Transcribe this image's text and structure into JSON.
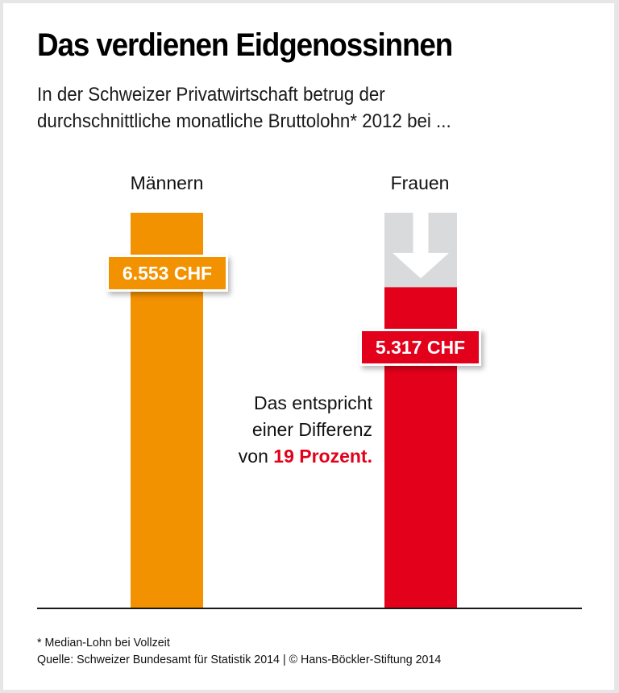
{
  "title": "Das verdienen Eidgenossinnen",
  "subtitle": {
    "line1": "In der Schweizer Privatwirtschaft betrug der",
    "line2": "durchschnittliche monatliche Bruttolohn* 2012 bei ..."
  },
  "note": {
    "line1": "Das entspricht",
    "line2": "einer Differenz",
    "line3_prefix": "von ",
    "line3_highlight": "19 Prozent."
  },
  "footer": {
    "footnote": "* Median-Lohn bei Vollzeit",
    "source": "Quelle: Schweizer Bundesamt für Statistik 2014 | © Hans-Böckler-Stiftung 2014"
  },
  "colors": {
    "men": "#f39200",
    "women": "#e2001a",
    "gap": "#d9dadb",
    "baseline": "#1a1a1a"
  },
  "icons": {
    "gap_arrow": "arrow-down-icon"
  },
  "chart_data": {
    "type": "bar",
    "title": "Das verdienen Eidgenossinnen",
    "xlabel": "",
    "ylabel": "",
    "unit": "CHF",
    "categories": [
      "Männern",
      "Frauen"
    ],
    "values": [
      6553,
      5317
    ],
    "value_labels": [
      "6.553 CHF",
      "5.317 CHF"
    ],
    "ylim": [
      0,
      6553
    ],
    "gap": {
      "from": 5317,
      "to": 6553,
      "percent": 19
    },
    "grid": false,
    "legend": "none"
  }
}
